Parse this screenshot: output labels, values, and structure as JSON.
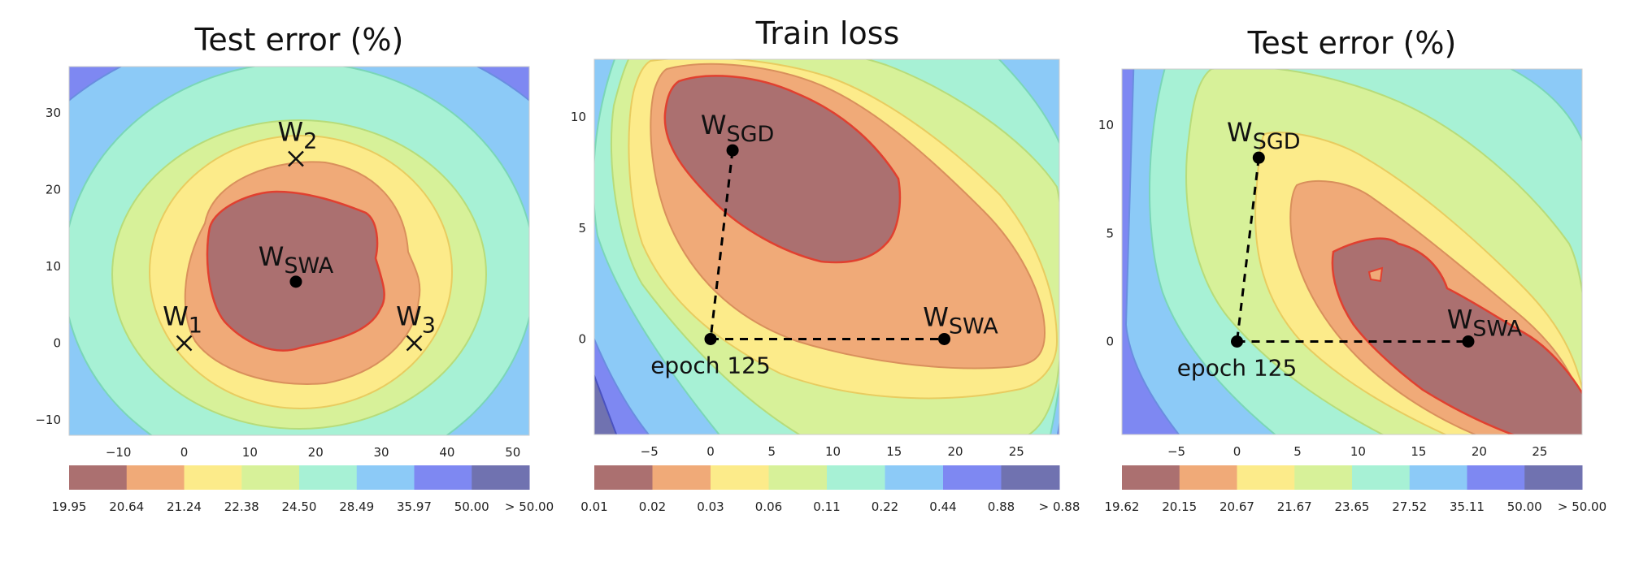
{
  "chart_data": [
    {
      "type": "contour",
      "title": "Test error (%)",
      "x_ticks": [
        -10,
        0,
        10,
        20,
        30,
        40,
        50
      ],
      "y_ticks": [
        -10,
        0,
        10,
        20,
        30
      ],
      "xlim": [
        -17.5,
        52.5
      ],
      "ylim": [
        -12,
        36
      ],
      "levels": [
        "19.95",
        "20.64",
        "21.24",
        "22.38",
        "24.50",
        "28.49",
        "35.97",
        "50.00",
        "> 50.00"
      ],
      "colors": [
        "#ab7070",
        "#f0aa78",
        "#fceb8a",
        "#d7f199",
        "#a7f1d5",
        "#8ccaf7",
        "#7e88f2",
        "#7072b0"
      ],
      "points": [
        {
          "main": "W",
          "sub": "SWA",
          "x": 17,
          "y": 8,
          "marker": "dot"
        },
        {
          "main": "W",
          "sub": "1",
          "x": 0,
          "y": 0,
          "marker": "cross"
        },
        {
          "main": "W",
          "sub": "2",
          "x": 17,
          "y": 24,
          "marker": "cross"
        },
        {
          "main": "W",
          "sub": "3",
          "x": 35,
          "y": 0,
          "marker": "cross"
        }
      ]
    },
    {
      "type": "contour",
      "title": "Train loss",
      "x_ticks": [
        -5,
        0,
        5,
        10,
        15,
        20,
        25
      ],
      "y_ticks": [
        0,
        5,
        10
      ],
      "xlim": [
        -9.5,
        28.5
      ],
      "ylim": [
        -4.3,
        12.6
      ],
      "levels": [
        "0.01",
        "0.02",
        "0.03",
        "0.06",
        "0.11",
        "0.22",
        "0.44",
        "0.88",
        "> 0.88"
      ],
      "colors": [
        "#ab7070",
        "#f0aa78",
        "#fceb8a",
        "#d7f199",
        "#a7f1d5",
        "#8ccaf7",
        "#7e88f2",
        "#7072b0"
      ],
      "points": [
        {
          "main": "W",
          "sub": "SGD",
          "x": 1.8,
          "y": 8.5,
          "marker": "dot"
        },
        {
          "main": "W",
          "sub": "SWA",
          "x": 19.1,
          "y": 0,
          "marker": "dot"
        },
        {
          "main": "epoch 125",
          "sub": "",
          "x": 0,
          "y": 0,
          "marker": "dot"
        }
      ]
    },
    {
      "type": "contour",
      "title": "Test error (%)",
      "x_ticks": [
        -5,
        0,
        5,
        10,
        15,
        20,
        25
      ],
      "y_ticks": [
        0,
        5,
        10
      ],
      "xlim": [
        -9.5,
        28.5
      ],
      "ylim": [
        -4.3,
        12.6
      ],
      "levels": [
        "19.62",
        "20.15",
        "20.67",
        "21.67",
        "23.65",
        "27.52",
        "35.11",
        "50.00",
        "> 50.00"
      ],
      "colors": [
        "#ab7070",
        "#f0aa78",
        "#fceb8a",
        "#d7f199",
        "#a7f1d5",
        "#8ccaf7",
        "#7e88f2",
        "#7072b0"
      ],
      "points": [
        {
          "main": "W",
          "sub": "SGD",
          "x": 1.8,
          "y": 8.5,
          "marker": "dot"
        },
        {
          "main": "W",
          "sub": "SWA",
          "x": 19.1,
          "y": 0,
          "marker": "dot"
        },
        {
          "main": "epoch 125",
          "sub": "",
          "x": 0,
          "y": 0,
          "marker": "dot"
        }
      ]
    }
  ]
}
